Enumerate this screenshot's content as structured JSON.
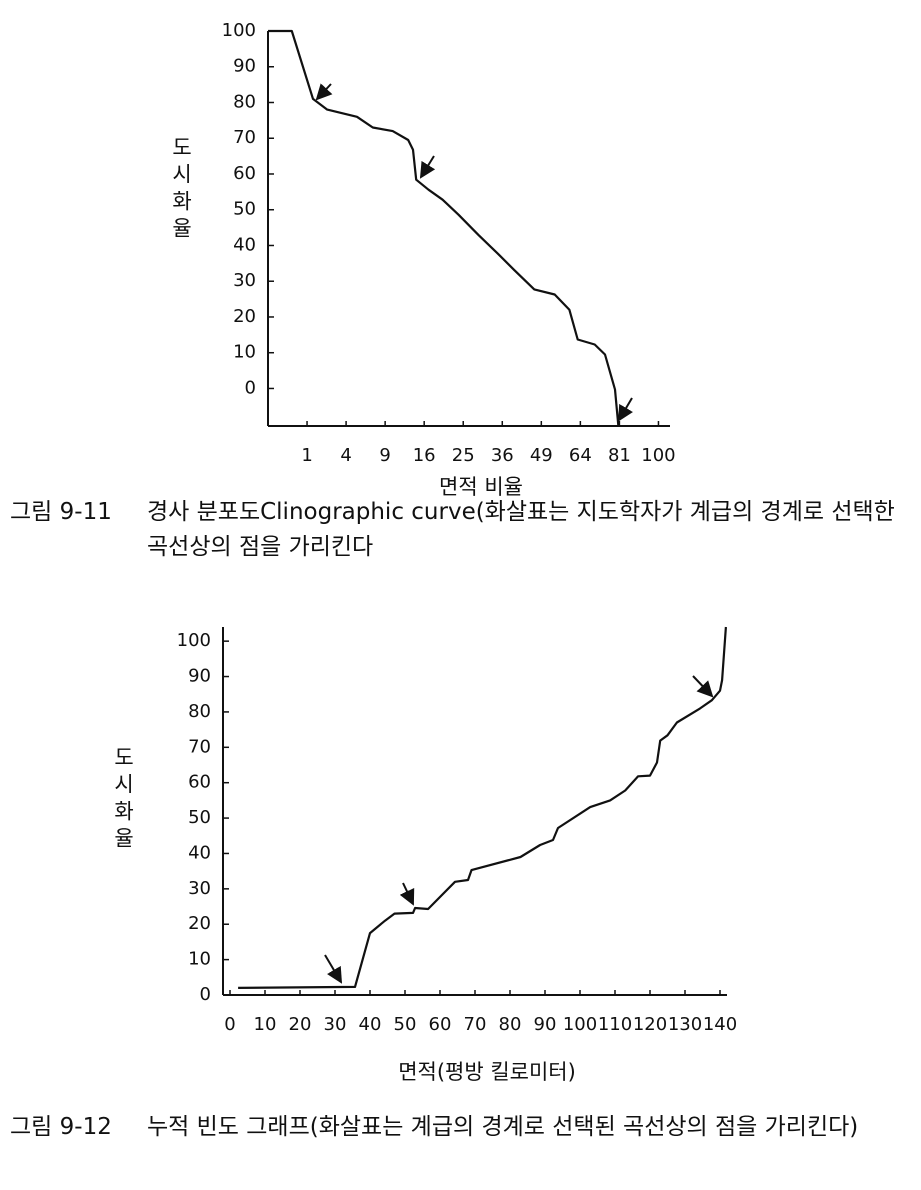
{
  "chart_data": [
    {
      "type": "line",
      "xscale": "sqrt",
      "color": "#111111",
      "y_label": "도시화율",
      "x_label": "면적 비율",
      "caption_number": "그림 9-11",
      "caption": "경사 분포도Clinographic curve(화살표는 지도학자가 계급의 경계로 선택한 곡선상의 점을 가리킨다",
      "x": [
        0,
        0.37,
        1.33,
        2.3,
        5.2,
        7.2,
        10.2,
        12.9,
        13.8,
        14.4,
        16.9,
        20,
        23.8,
        29,
        35,
        39.7,
        46.5,
        53.9,
        59.6,
        62.9,
        70,
        74.5,
        79,
        80.5
      ],
      "values": [
        100,
        100,
        81,
        78,
        76,
        73,
        72,
        69.5,
        66.8,
        58.4,
        55.6,
        52.8,
        48.6,
        43,
        37.4,
        33.2,
        27.7,
        26.3,
        22,
        13.7,
        12.3,
        9.5,
        -0.3,
        -10.3
      ],
      "xlim": [
        0,
        106
      ],
      "xticks": [
        1,
        4,
        9,
        16,
        25,
        36,
        49,
        64,
        81,
        100
      ],
      "ylim": [
        -10.5,
        100
      ],
      "yticks": [
        0,
        10,
        20,
        30,
        40,
        50,
        60,
        70,
        80,
        90,
        100
      ],
      "grid": false
    },
    {
      "type": "line",
      "xscale": "linear",
      "color": "#111111",
      "y_label": "도시화율",
      "x_label": "면적(평방 킬로미터)",
      "caption_number": "그림 9-12",
      "caption": "누적 빈도 그래프(화살표는 계급의 경계로 선택된 곡선상의 점을 가리킨다)",
      "x": [
        2.3,
        35.7,
        40,
        44.3,
        47,
        52.3,
        52.9,
        56.6,
        64.3,
        68,
        69,
        83,
        88.6,
        92.3,
        93.7,
        102.9,
        108.6,
        112.9,
        116.6,
        120,
        122,
        122.9,
        125,
        127.7,
        134.3,
        137.7,
        140,
        140.6,
        141.7
      ],
      "values": [
        2,
        2.3,
        17.5,
        21,
        23,
        23.2,
        24.6,
        24.3,
        32,
        32.5,
        35.3,
        39,
        42.4,
        43.8,
        47.2,
        53.1,
        55,
        57.8,
        61.8,
        62,
        65.7,
        71.9,
        73.4,
        77,
        81,
        83.3,
        86,
        89,
        104
      ],
      "xlim": [
        -2,
        142
      ],
      "xticks": [
        0,
        10,
        20,
        30,
        40,
        50,
        60,
        70,
        80,
        90,
        100,
        110,
        120,
        130,
        140
      ],
      "ylim": [
        0,
        104
      ],
      "yticks": [
        0,
        10,
        20,
        30,
        40,
        50,
        60,
        70,
        80,
        90,
        100
      ],
      "grid": false
    }
  ]
}
